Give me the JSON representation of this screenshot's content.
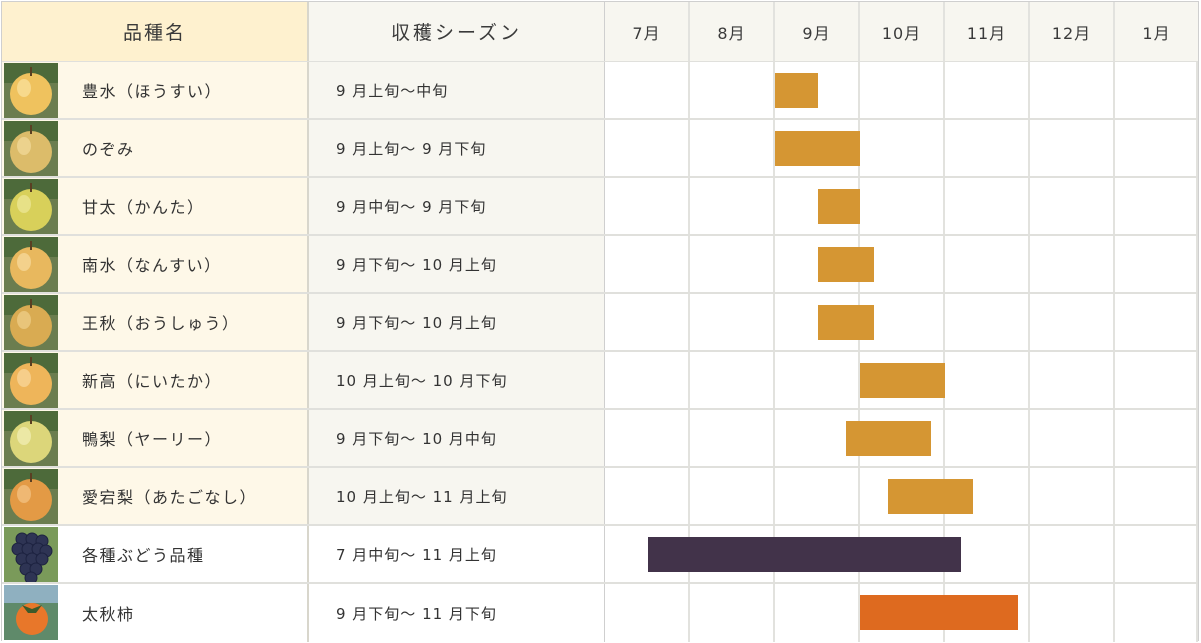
{
  "header": {
    "name_col": "品種名",
    "season_col": "収穫シーズン",
    "months": [
      "7月",
      "8月",
      "9月",
      "10月",
      "11月",
      "12月",
      "1月"
    ]
  },
  "colors": {
    "pear_bar": "#d59633",
    "grape_bar": "#42334a",
    "persimmon_bar": "#de6a1f",
    "name_header_bg": "#fef1cf",
    "name_row_bg": "#fef8e8",
    "season_bg": "#f7f6f0"
  },
  "rows": [
    {
      "name": "豊水（ほうすい）",
      "season": "9 月上旬〜中旬",
      "thumb": "pear-thumbnail",
      "bar_color": "#d59633",
      "plain": false
    },
    {
      "name": "のぞみ",
      "season": "9 月上旬〜 9 月下旬",
      "thumb": "pear-thumbnail",
      "bar_color": "#d59633",
      "plain": false
    },
    {
      "name": "甘太（かんた）",
      "season": "9 月中旬〜 9 月下旬",
      "thumb": "pear-thumbnail",
      "bar_color": "#d59633",
      "plain": false
    },
    {
      "name": "南水（なんすい）",
      "season": "9 月下旬〜 10 月上旬",
      "thumb": "pear-thumbnail",
      "bar_color": "#d59633",
      "plain": false
    },
    {
      "name": "王秋（おうしゅう）",
      "season": "9 月下旬〜 10 月上旬",
      "thumb": "pear-thumbnail",
      "bar_color": "#d59633",
      "plain": false
    },
    {
      "name": "新高（にいたか）",
      "season": "10 月上旬〜 10 月下旬",
      "thumb": "pear-thumbnail",
      "bar_color": "#d59633",
      "plain": false
    },
    {
      "name": "鴨梨（ヤーリー）",
      "season": "9 月下旬〜 10 月中旬",
      "thumb": "pear-thumbnail",
      "bar_color": "#d59633",
      "plain": false
    },
    {
      "name": "愛宕梨（あたごなし）",
      "season": "10 月上旬〜 11 月上旬",
      "thumb": "pear-thumbnail",
      "bar_color": "#d59633",
      "plain": false
    },
    {
      "name": "各種ぶどう品種",
      "season": "7 月中旬〜 11 月上旬",
      "thumb": "grape-thumbnail",
      "bar_color": "#42334a",
      "plain": true
    },
    {
      "name": "太秋柿",
      "season": "9 月下旬〜 11 月下旬",
      "thumb": "persimmon-thumbnail",
      "bar_color": "#de6a1f",
      "plain": true
    }
  ],
  "chart_data": {
    "type": "gantt",
    "title": "",
    "xlabel": "",
    "ylabel": "品種名",
    "categories": [
      "豊水（ほうすい）",
      "のぞみ",
      "甘太（かんた）",
      "南水（なんすい）",
      "王秋（おうしゅう）",
      "新高（にいたか）",
      "鴨梨（ヤーリー）",
      "愛宕梨（あたごなし）",
      "各種ぶどう品種",
      "太秋柿"
    ],
    "x_ticks": [
      "7月",
      "8月",
      "9月",
      "10月",
      "11月",
      "12月",
      "1月"
    ],
    "x_unit": "month (0 = start of July, 1 month = 1.0)",
    "xlim": [
      0,
      7
    ],
    "grid": true,
    "series": [
      {
        "name": "豊水（ほうすい）",
        "start": 2.0,
        "end": 2.5,
        "label": "9 月上旬〜中旬",
        "color": "#d59633"
      },
      {
        "name": "のぞみ",
        "start": 2.0,
        "end": 3.0,
        "label": "9 月上旬〜 9 月下旬",
        "color": "#d59633"
      },
      {
        "name": "甘太（かんた）",
        "start": 2.5,
        "end": 3.0,
        "label": "9 月中旬〜 9 月下旬",
        "color": "#d59633"
      },
      {
        "name": "南水（なんすい）",
        "start": 2.5,
        "end": 3.17,
        "label": "9 月下旬〜 10 月上旬",
        "color": "#d59633"
      },
      {
        "name": "王秋（おうしゅう）",
        "start": 2.5,
        "end": 3.17,
        "label": "9 月下旬〜 10 月上旬",
        "color": "#d59633"
      },
      {
        "name": "新高（にいたか）",
        "start": 3.0,
        "end": 4.0,
        "label": "10 月上旬〜 10 月下旬",
        "color": "#d59633"
      },
      {
        "name": "鴨梨（ヤーリー）",
        "start": 2.83,
        "end": 3.83,
        "label": "9 月下旬〜 10 月中旬",
        "color": "#d59633"
      },
      {
        "name": "愛宕梨（あたごなし）",
        "start": 3.33,
        "end": 4.33,
        "label": "10 月上旬〜 11 月上旬",
        "color": "#d59633"
      },
      {
        "name": "各種ぶどう品種",
        "start": 0.5,
        "end": 4.19,
        "label": "7 月中旬〜 11 月上旬",
        "color": "#42334a"
      },
      {
        "name": "太秋柿",
        "start": 3.0,
        "end": 4.86,
        "label": "9 月下旬〜 11 月下旬",
        "color": "#de6a1f"
      }
    ]
  }
}
